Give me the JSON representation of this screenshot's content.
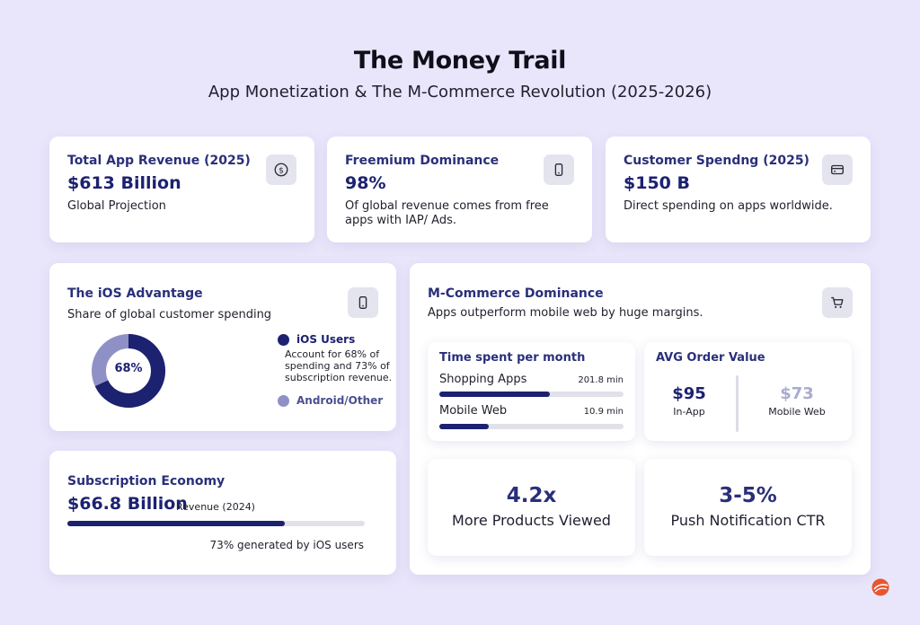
{
  "header": {
    "title": "The Money Trail",
    "subtitle": "App Monetization & The M-Commerce Revolution (2025-2026)"
  },
  "colors": {
    "background": "#e9e6fb",
    "navy": "#1c2170",
    "light_purple": "#8f91c6",
    "muted_value": "#a9abd0",
    "logo": "#e8552f"
  },
  "cards": {
    "total_revenue": {
      "label": "Total App Revenue (2025)",
      "value": "$613 Billion",
      "description": "Global Projection",
      "icon": "dollar-circle-icon"
    },
    "freemium": {
      "label": "Freemium Dominance",
      "value": "98%",
      "description_line1": "Of global revenue comes from free",
      "description_line2": "apps with IAP/ Ads.",
      "icon": "smartphone-icon"
    },
    "customer_spending": {
      "label": "Customer Spendng (2025)",
      "value": "$150 B",
      "description": "Direct spending on apps worldwide.",
      "icon": "credit-card-icon"
    },
    "ios_advantage": {
      "label": "The iOS Advantage",
      "subtitle": "Share of global customer spending",
      "icon": "smartphone-icon",
      "donut_label": "68%",
      "ios_share": 68,
      "legend": {
        "ios_title": "iOS Users",
        "ios_line1": "Account for 68% of",
        "ios_line2": "spending and 73% of",
        "ios_line3": "subscription revenue.",
        "android_title": "Android/Other"
      }
    },
    "subscription": {
      "label": "Subscription Economy",
      "value": "$66.8 Billion",
      "value_note": "Revenue (2024)",
      "bar_percent": 73,
      "caption": "73% generated by iOS users"
    },
    "mcommerce": {
      "label": "M-Commerce Dominance",
      "subtitle": "Apps outperform mobile web by huge margins.",
      "icon": "shopping-cart-icon",
      "time_spent": {
        "title": "Time spent per month",
        "rows": [
          {
            "name": "Shopping Apps",
            "value": "201.8 min",
            "minutes": 201.8
          },
          {
            "name": "Mobile Web",
            "value": "10.9 min",
            "minutes": 10.9
          }
        ]
      },
      "order_value": {
        "title": "AVG Order Value",
        "in_app_value": "$95",
        "in_app_label": "In-App",
        "web_value": "$73",
        "web_label": "Mobile Web"
      },
      "products": {
        "value": "4.2x",
        "label": "More Products Viewed"
      },
      "push": {
        "value": "3-5%",
        "label": "Push Notification CTR"
      }
    }
  }
}
